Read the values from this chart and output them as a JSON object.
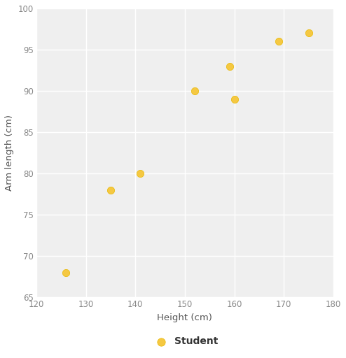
{
  "x": [
    126,
    135,
    141,
    152,
    159,
    160,
    169,
    175
  ],
  "y": [
    68,
    78,
    80,
    90,
    93,
    89,
    96,
    97
  ],
  "xlim": [
    120,
    180
  ],
  "ylim": [
    65,
    100
  ],
  "xticks": [
    120,
    130,
    140,
    150,
    160,
    170,
    180
  ],
  "yticks": [
    65,
    70,
    75,
    80,
    85,
    90,
    95,
    100
  ],
  "xlabel": "Height (cm)",
  "ylabel": "Arm length (cm)",
  "legend_label": "Student",
  "marker_color": "#F5C842",
  "marker_edge_color": "#E8B800",
  "marker_size": 55,
  "plot_background_color": "#efefef",
  "figure_background_color": "#ffffff",
  "grid_color": "#ffffff",
  "axis_color": "#555555",
  "tick_color": "#888888",
  "label_fontsize": 9.5,
  "tick_fontsize": 8.5,
  "legend_fontsize": 10,
  "legend_text_color": "#333333"
}
